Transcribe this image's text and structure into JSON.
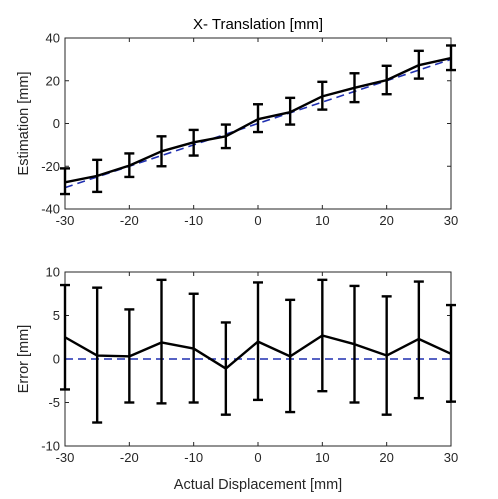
{
  "chart_data": [
    {
      "type": "line",
      "title": "X- Translation [mm]",
      "xlabel": "",
      "ylabel": "Estimation [mm]",
      "xlim": [
        -30,
        30
      ],
      "ylim": [
        -40,
        40
      ],
      "xticks": [
        -30,
        -20,
        -10,
        0,
        10,
        20,
        30
      ],
      "yticks": [
        -40,
        -20,
        0,
        20,
        40
      ],
      "grid": false,
      "x": [
        -30,
        -25,
        -20,
        -15,
        -10,
        -5,
        0,
        5,
        10,
        15,
        20,
        25,
        30
      ],
      "series": [
        {
          "values": [
            -27.5,
            -24.5,
            -19.7,
            -13,
            -8.8,
            -6,
            2,
            5.3,
            12.7,
            16.7,
            20.3,
            27.3,
            30.6
          ],
          "err_low": [
            -33,
            -32,
            -25,
            -20,
            -15,
            -11.5,
            -4,
            -0.5,
            6.5,
            10,
            13.7,
            21,
            25
          ],
          "err_high": [
            -21,
            -17,
            -14,
            -6,
            -3,
            -0.5,
            9,
            12,
            19.5,
            23.5,
            27,
            34,
            36.5
          ],
          "color": "#000000",
          "style": "solid"
        },
        {
          "values": [
            -30,
            -25,
            -20,
            -15,
            -10,
            -5,
            0,
            5,
            10,
            15,
            20,
            25,
            30
          ],
          "color": "#1f2fb0",
          "style": "dashed"
        }
      ]
    },
    {
      "type": "line",
      "title": "",
      "xlabel": "Actual Displacement [mm]",
      "ylabel": "Error [mm]",
      "xlim": [
        -30,
        30
      ],
      "ylim": [
        -10,
        10
      ],
      "xticks": [
        -30,
        -20,
        -10,
        0,
        10,
        20,
        30
      ],
      "yticks": [
        -10,
        -5,
        0,
        5,
        10
      ],
      "grid": false,
      "x": [
        -30,
        -25,
        -20,
        -15,
        -10,
        -5,
        0,
        5,
        10,
        15,
        20,
        25,
        30
      ],
      "series": [
        {
          "values": [
            2.5,
            0.4,
            0.3,
            1.9,
            1.2,
            -1.1,
            2.0,
            0.3,
            2.7,
            1.7,
            0.4,
            2.3,
            0.6
          ],
          "err_low": [
            -3.5,
            -7.3,
            -5.0,
            -5.1,
            -5.0,
            -6.4,
            -4.7,
            -6.1,
            -3.7,
            -5.0,
            -6.4,
            -4.5,
            -4.9
          ],
          "err_high": [
            8.5,
            8.2,
            5.7,
            9.1,
            7.5,
            4.2,
            8.8,
            6.8,
            9.1,
            8.4,
            7.2,
            8.9,
            6.2
          ],
          "color": "#000000",
          "style": "solid"
        },
        {
          "values": [
            0,
            0,
            0,
            0,
            0,
            0,
            0,
            0,
            0,
            0,
            0,
            0,
            0
          ],
          "color": "#1f2fb0",
          "style": "dashed"
        }
      ]
    }
  ]
}
